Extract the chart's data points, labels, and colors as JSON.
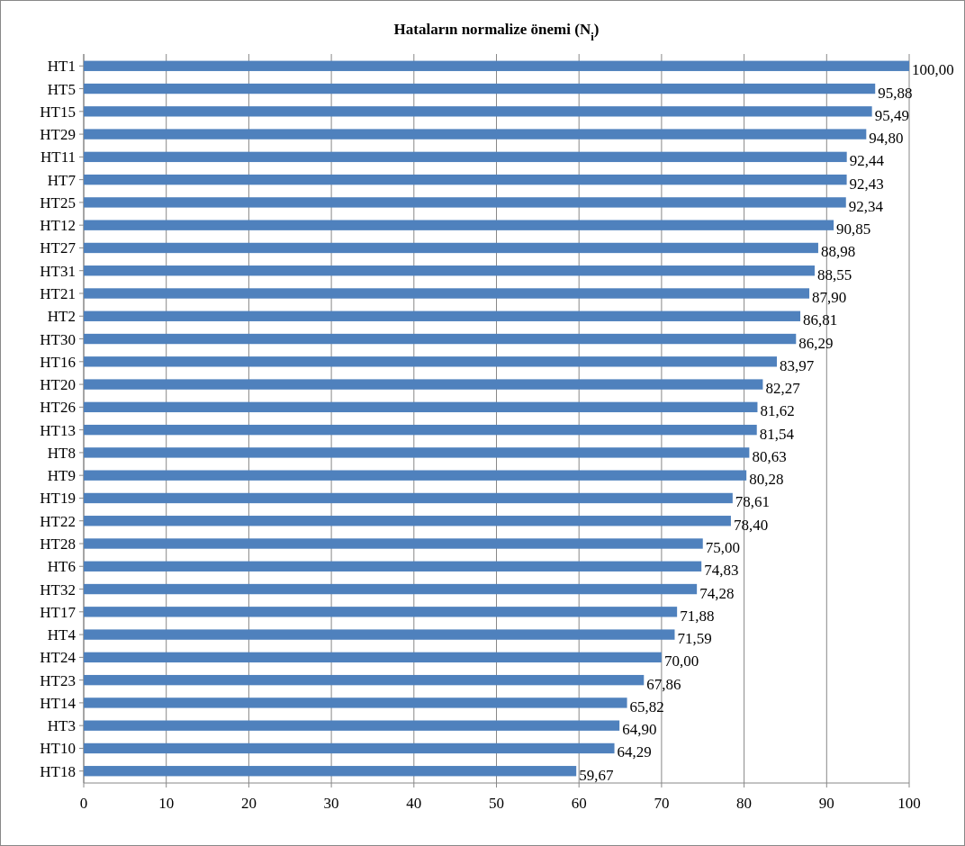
{
  "chart_data": {
    "type": "bar",
    "orientation": "horizontal",
    "title": "Hataların normalize önemi (N$_{i}$)",
    "categories": [
      "HT1",
      "HT5",
      "HT15",
      "HT29",
      "HT11",
      "HT7",
      "HT25",
      "HT12",
      "HT27",
      "HT31",
      "HT21",
      "HT2",
      "HT30",
      "HT16",
      "HT20",
      "HT26",
      "HT13",
      "HT8",
      "HT9",
      "HT19",
      "HT22",
      "HT28",
      "HT6",
      "HT32",
      "HT17",
      "HT4",
      "HT24",
      "HT23",
      "HT14",
      "HT3",
      "HT10",
      "HT18"
    ],
    "values": [
      100,
      95.88,
      95.49,
      94.8,
      92.44,
      92.43,
      92.34,
      90.85,
      88.98,
      88.55,
      87.9,
      86.81,
      86.29,
      83.97,
      82.27,
      81.62,
      81.54,
      80.63,
      80.28,
      78.61,
      78.4,
      75,
      74.83,
      74.28,
      71.88,
      71.59,
      70,
      67.86,
      65.82,
      64.9,
      64.29,
      59.67
    ],
    "value_labels": [
      "100,00",
      "95,88",
      "95,49",
      "94,80",
      "92,44",
      "92,43",
      "92,34",
      "90,85",
      "88,98",
      "88,55",
      "87,90",
      "86,81",
      "86,29",
      "83,97",
      "82,27",
      "81,62",
      "81,54",
      "80,63",
      "80,28",
      "78,61",
      "78,40",
      "75,00",
      "74,83",
      "74,28",
      "71,88",
      "71,59",
      "70,00",
      "67,86",
      "65,82",
      "64,90",
      "64,29",
      "59,67"
    ],
    "color": "#4f81bd",
    "xlim": [
      0,
      100
    ],
    "xticks": [
      0,
      10,
      20,
      30,
      40,
      50,
      60,
      70,
      80,
      90,
      100
    ],
    "grid": "x"
  }
}
